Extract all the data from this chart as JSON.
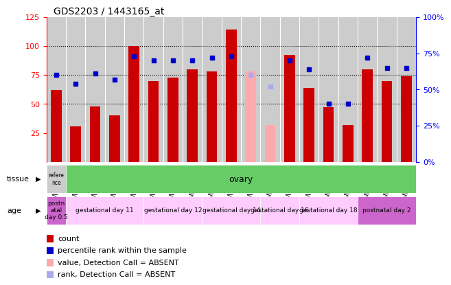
{
  "title": "GDS2203 / 1443165_at",
  "samples": [
    "GSM120857",
    "GSM120854",
    "GSM120855",
    "GSM120856",
    "GSM120851",
    "GSM120852",
    "GSM120853",
    "GSM120848",
    "GSM120849",
    "GSM120850",
    "GSM120845",
    "GSM120846",
    "GSM120847",
    "GSM120842",
    "GSM120843",
    "GSM120844",
    "GSM120839",
    "GSM120840",
    "GSM120841"
  ],
  "count_values": [
    62,
    31,
    48,
    40,
    100,
    70,
    73,
    80,
    78,
    114,
    null,
    null,
    92,
    64,
    47,
    32,
    80,
    70,
    74
  ],
  "rank_values": [
    60,
    54,
    61,
    57,
    73,
    70,
    70,
    70,
    72,
    73,
    null,
    null,
    70,
    64,
    40,
    40,
    72,
    65,
    65
  ],
  "absent_count": [
    null,
    null,
    null,
    null,
    null,
    null,
    null,
    null,
    null,
    null,
    78,
    32,
    null,
    null,
    null,
    null,
    null,
    null,
    null
  ],
  "absent_rank": [
    null,
    null,
    null,
    null,
    null,
    null,
    null,
    null,
    null,
    null,
    60,
    52,
    null,
    null,
    null,
    null,
    null,
    null,
    null
  ],
  "ylim_left": [
    0,
    125
  ],
  "ylim_right": [
    0,
    100
  ],
  "yticks_left": [
    25,
    50,
    75,
    100,
    125
  ],
  "yticks_right": [
    0,
    25,
    50,
    75,
    100
  ],
  "bar_color": "#cc0000",
  "rank_color": "#0000cc",
  "absent_bar_color": "#ffaaaa",
  "absent_rank_color": "#aaaaee",
  "plot_bg_color": "#cccccc",
  "tissue_ref_label": "refere\nnce",
  "tissue_ref_color": "#cccccc",
  "tissue_ovary_label": "ovary",
  "tissue_ovary_color": "#66cc66",
  "age_groups": [
    {
      "label": "postn\natal\nday 0.5",
      "color": "#cc66cc",
      "start": 0,
      "end": 1
    },
    {
      "label": "gestational day 11",
      "color": "#ffccff",
      "start": 1,
      "end": 5
    },
    {
      "label": "gestational day 12",
      "color": "#ffccff",
      "start": 5,
      "end": 8
    },
    {
      "label": "gestational day 14",
      "color": "#ffccff",
      "start": 8,
      "end": 11
    },
    {
      "label": "gestational day 16",
      "color": "#ffccff",
      "start": 11,
      "end": 13
    },
    {
      "label": "gestational day 18",
      "color": "#ffccff",
      "start": 13,
      "end": 16
    },
    {
      "label": "postnatal day 2",
      "color": "#cc66cc",
      "start": 16,
      "end": 19
    }
  ],
  "legend_items": [
    {
      "label": "count",
      "color": "#cc0000"
    },
    {
      "label": "percentile rank within the sample",
      "color": "#0000cc"
    },
    {
      "label": "value, Detection Call = ABSENT",
      "color": "#ffaaaa"
    },
    {
      "label": "rank, Detection Call = ABSENT",
      "color": "#aaaaee"
    }
  ]
}
